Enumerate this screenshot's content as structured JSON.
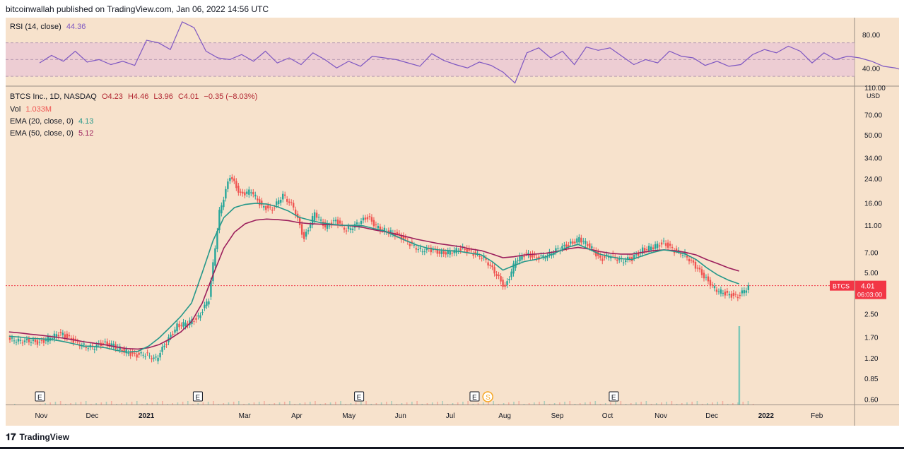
{
  "header": {
    "published": "bitcoinwallah published on TradingView.com, Jan 06, 2022 14:56 UTC"
  },
  "footer": {
    "brand": "TradingView",
    "logo_icon": "tradingview-logo-icon"
  },
  "colors": {
    "background": "#f7e2cc",
    "up": "#26a69a",
    "down": "#ef5350",
    "ema20": "#26988a",
    "ema50": "#9c1f5c",
    "rsi": "#7e57c2",
    "last_price": "#f23645"
  },
  "rsi_legend": {
    "label": "RSI (14, close)",
    "value": "44.36"
  },
  "price_legend": {
    "symbol": "BTCS Inc., 1D, NASDAQ",
    "open": "O4.23",
    "high": "H4.46",
    "low": "L3.96",
    "close": "C4.01",
    "change": "−0.35 (−8.03%)",
    "vol_label": "Vol",
    "vol_value": "1.033M",
    "ema20_label": "EMA (20, close, 0)",
    "ema20_value": "4.13",
    "ema50_label": "EMA (50, close, 0)",
    "ema50_value": "5.12"
  },
  "price_tag": {
    "symbol": "BTCS",
    "price": "4.01",
    "countdown": "06:03:00"
  },
  "chart_data": [
    {
      "type": "line",
      "name": "RSI (14, close)",
      "yaxis_ticks": [
        "80.00",
        "40.00"
      ],
      "ylim": [
        20,
        100
      ],
      "band": [
        30,
        70
      ],
      "x": [
        0,
        7,
        14,
        21,
        28,
        35,
        42,
        49,
        56,
        63,
        70,
        77,
        84,
        91,
        98,
        105,
        112,
        119,
        126,
        133,
        140,
        147,
        154,
        161,
        168,
        175,
        182,
        189,
        196,
        203,
        210,
        217,
        224,
        231,
        238,
        245,
        252,
        259,
        266,
        273,
        280,
        287,
        294,
        301,
        308,
        315,
        322,
        329,
        336,
        343,
        350,
        357,
        364,
        371,
        378,
        385,
        392,
        399,
        406,
        413,
        420,
        427,
        434,
        441,
        448,
        455,
        462,
        469,
        476,
        483,
        490,
        497,
        504,
        511,
        518,
        525,
        532,
        539,
        546,
        550,
        553
      ],
      "values": [
        46,
        55,
        48,
        60,
        47,
        50,
        44,
        48,
        43,
        73,
        70,
        62,
        95,
        88,
        60,
        52,
        50,
        56,
        48,
        60,
        46,
        52,
        44,
        58,
        50,
        40,
        48,
        42,
        54,
        52,
        50,
        46,
        42,
        57,
        49,
        44,
        40,
        47,
        43,
        35,
        22,
        58,
        64,
        52,
        60,
        44,
        65,
        61,
        64,
        54,
        44,
        50,
        46,
        60,
        54,
        52,
        43,
        48,
        42,
        44,
        56,
        62,
        58,
        66,
        60,
        46,
        58,
        50,
        54,
        52,
        48,
        42,
        40,
        36,
        32,
        30,
        28,
        34,
        29,
        30,
        44
      ]
    },
    {
      "type": "candlestick",
      "name": "BTCS Inc., 1D, NASDAQ",
      "yscale": "log",
      "ylim": [
        0.55,
        110
      ],
      "yaxis_ticks": [
        "110.00",
        "70.00",
        "50.00",
        "34.00",
        "24.00",
        "16.00",
        "11.00",
        "7.00",
        "5.00",
        "2.50",
        "1.70",
        "1.20",
        "0.85",
        "0.60"
      ],
      "yaxis_unit": "USD",
      "x_tick_labels": [
        "Nov",
        "Dec",
        "2021",
        "Mar",
        "Apr",
        "May",
        "Jun",
        "Jul",
        "Aug",
        "Sep",
        "Oct",
        "Nov",
        "Dec",
        "2022",
        "Feb"
      ],
      "x_ticks_day": [
        1,
        31,
        62,
        121,
        152,
        182,
        213,
        243,
        274,
        305,
        335,
        366,
        396,
        427,
        458
      ],
      "xlim": [
        -20,
        480
      ],
      "earnings_markers": {
        "label": "E",
        "days": [
          0,
          93,
          188,
          256,
          338
        ]
      },
      "dividend_marker": {
        "label": "S",
        "day": 264
      },
      "last_price": 4.01,
      "candles_weekly_close": [
        1.62,
        1.58,
        1.55,
        1.68,
        1.82,
        1.62,
        1.49,
        1.42,
        1.53,
        1.48,
        1.35,
        1.25,
        1.28,
        1.18,
        1.55,
        2.05,
        2.15,
        2.35,
        3.2,
        13.8,
        25,
        18.5,
        19.5,
        15.2,
        14.2,
        18.5,
        14.8,
        8.8,
        13.5,
        10.8,
        11.8,
        10.2,
        11.2,
        12.6,
        10.5,
        9.9,
        9.2,
        8.1,
        7.3,
        7.3,
        6.9,
        7.1,
        7.5,
        6.8,
        6.5,
        5.0,
        3.9,
        6.1,
        6.9,
        6.3,
        6.7,
        7.4,
        7.9,
        8.8,
        7.8,
        6.2,
        6.7,
        6.1,
        6.3,
        7.3,
        7.7,
        8.2,
        7.2,
        6.8,
        5.5,
        4.5,
        3.7,
        3.5,
        3.3,
        4.0
      ],
      "ema20": [
        1.72,
        1.7,
        1.66,
        1.65,
        1.63,
        1.58,
        1.52,
        1.46,
        1.45,
        1.42,
        1.36,
        1.32,
        1.34,
        1.46,
        1.68,
        2.0,
        2.4,
        3.0,
        5.0,
        8.5,
        12.5,
        14.8,
        15.6,
        15.9,
        15.7,
        15.0,
        14.0,
        12.6,
        12.0,
        11.5,
        11.2,
        11.0,
        11.0,
        10.9,
        10.4,
        10.0,
        9.2,
        8.5,
        7.9,
        7.5,
        7.3,
        7.2,
        7.1,
        6.9,
        6.7,
        6.0,
        5.2,
        5.6,
        6.0,
        6.2,
        6.5,
        7.0,
        7.6,
        8.0,
        7.4,
        6.8,
        6.5,
        6.3,
        6.2,
        6.6,
        7.0,
        7.3,
        7.1,
        6.8,
        6.2,
        5.4,
        4.8,
        4.4,
        4.13
      ],
      "ema50": [
        1.85,
        1.82,
        1.78,
        1.75,
        1.71,
        1.67,
        1.62,
        1.57,
        1.53,
        1.49,
        1.44,
        1.4,
        1.39,
        1.42,
        1.5,
        1.65,
        1.85,
        2.2,
        3.0,
        4.8,
        7.5,
        9.8,
        11.3,
        12.0,
        12.2,
        12.1,
        11.9,
        11.5,
        11.3,
        11.2,
        11.1,
        11.0,
        10.9,
        10.6,
        10.2,
        9.9,
        9.5,
        9.1,
        8.7,
        8.4,
        8.1,
        7.9,
        7.7,
        7.4,
        7.2,
        6.8,
        6.4,
        6.5,
        6.7,
        6.8,
        6.9,
        7.1,
        7.4,
        7.6,
        7.4,
        7.1,
        6.9,
        6.8,
        6.8,
        7.0,
        7.2,
        7.3,
        7.2,
        7.0,
        6.7,
        6.2,
        5.8,
        5.4,
        5.12
      ]
    },
    {
      "type": "bar",
      "name": "Vol",
      "spike_day": 412,
      "spike_value": 1.033
    }
  ]
}
